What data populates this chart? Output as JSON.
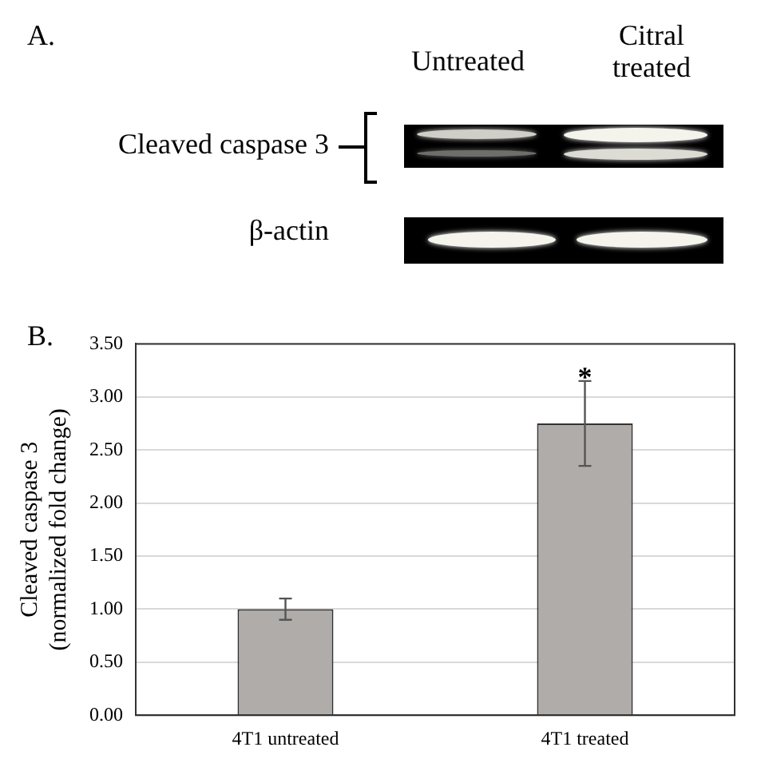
{
  "chart_data": {
    "type": "bar",
    "ylabel": "Cleaved caspase 3\n(normalized fold change)",
    "categories": [
      "4T1 untreated",
      "4T1 treated"
    ],
    "values": [
      1.0,
      2.75
    ],
    "errors": [
      0.1,
      0.4
    ],
    "color": "#b0aca9",
    "ylim": [
      0,
      3.5
    ],
    "yticks": [
      {
        "value": 0,
        "label": "0.00"
      },
      {
        "value": 0.5,
        "label": "0.50"
      },
      {
        "value": 1,
        "label": "1.00"
      },
      {
        "value": 1.5,
        "label": "1.50"
      },
      {
        "value": 2,
        "label": "2.00"
      },
      {
        "value": 2.5,
        "label": "2.50"
      },
      {
        "value": 3,
        "label": "3.00"
      },
      {
        "value": 3.5,
        "label": "3.50"
      }
    ],
    "grid": "y",
    "legend": false,
    "annotations": [
      "A.",
      "Untreated",
      "Citral treated",
      "Cleaved caspase 3",
      "β-actin",
      "B.",
      {
        "text": "*",
        "x": "4T1 treated",
        "y": 3.15
      }
    ]
  }
}
